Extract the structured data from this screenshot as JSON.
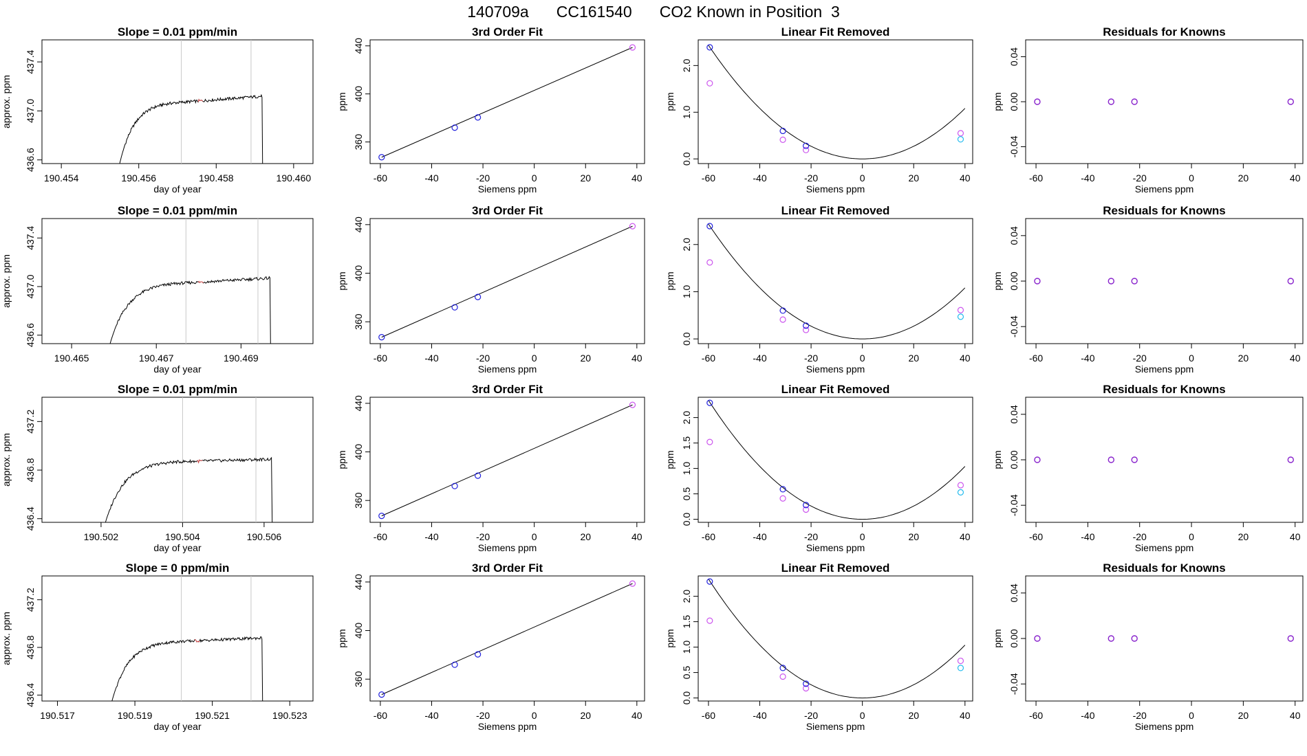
{
  "page": {
    "title_parts": [
      "140709a",
      "CC161540",
      "CO2 Known in Position  3"
    ]
  },
  "colors": {
    "axis": "#000000",
    "trace": "#000000",
    "marker_vline": "#c8c8c8",
    "highlight_trace": "#e05050",
    "point_blue": "#2020dd",
    "point_magenta": "#cc55ee",
    "point_cyan": "#22bbee",
    "point_purple": "#8822cc"
  },
  "chart_data": [
    {
      "type": "line",
      "panel": "time-series",
      "row": 0,
      "title": "Slope =  0.01  ppm/min",
      "xlabel": "day of year",
      "ylabel": "approx. ppm",
      "xlim": [
        190.4535,
        190.4605
      ],
      "ylim": [
        436.57,
        437.58
      ],
      "xticks": [
        190.454,
        190.456,
        190.458,
        190.46
      ],
      "xtick_labels": [
        "190.454",
        "190.456",
        "190.458",
        "190.460"
      ],
      "yticks": [
        436.6,
        437.0,
        437.4
      ],
      "ytick_labels": [
        "436.6",
        "437.0",
        "437.4"
      ],
      "vlines": [
        190.4571,
        190.4589
      ],
      "curve": {
        "x_start": 190.4555,
        "x_plateau": 190.4571,
        "x_end": 190.4592,
        "y_start": 436.56,
        "y_plateau": 437.07,
        "y_final": 437.12,
        "noise": 0.012
      }
    },
    {
      "type": "line",
      "panel": "time-series",
      "row": 1,
      "title": "Slope =  0.01  ppm/min",
      "xlabel": "day of year",
      "ylabel": "approx. ppm",
      "xlim": [
        190.4643,
        190.4707
      ],
      "ylim": [
        436.53,
        437.56
      ],
      "xticks": [
        190.465,
        190.467,
        190.469
      ],
      "xtick_labels": [
        "190.465",
        "190.467",
        "190.469"
      ],
      "yticks": [
        436.6,
        437.0,
        437.4
      ],
      "ytick_labels": [
        "436.6",
        "437.0",
        "437.4"
      ],
      "vlines": [
        190.4677,
        190.4694
      ],
      "curve": {
        "x_start": 190.4659,
        "x_plateau": 190.4677,
        "x_end": 190.4697,
        "y_start": 436.52,
        "y_plateau": 437.03,
        "y_final": 437.07,
        "noise": 0.012
      }
    },
    {
      "type": "line",
      "panel": "time-series",
      "row": 2,
      "title": "Slope =  0.01  ppm/min",
      "xlabel": "day of year",
      "ylabel": "approx. ppm",
      "xlim": [
        190.50105,
        190.5077
      ],
      "ylim": [
        436.37,
        437.4
      ],
      "xticks": [
        190.5025,
        190.5045,
        190.5065
      ],
      "xtick_labels": [
        "190.502",
        "190.504",
        "190.506"
      ],
      "yticks": [
        436.4,
        436.8,
        437.2
      ],
      "ytick_labels": [
        "436.4",
        "436.8",
        "437.2"
      ],
      "vlines": [
        190.5045,
        190.5063
      ],
      "curve": {
        "x_start": 190.5026,
        "x_plateau": 190.5045,
        "x_end": 190.5067,
        "y_start": 436.36,
        "y_plateau": 436.87,
        "y_final": 436.89,
        "noise": 0.012
      }
    },
    {
      "type": "line",
      "panel": "time-series",
      "row": 3,
      "title": "Slope =  0",
      "title_suffix": "  ppm/min",
      "xlabel": "day of year",
      "ylabel": "approx. ppm",
      "xlim": [
        190.5166,
        190.5236
      ],
      "ylim": [
        436.35,
        437.4
      ],
      "xticks": [
        190.517,
        190.519,
        190.521,
        190.523
      ],
      "xtick_labels": [
        "190.517",
        "190.519",
        "190.521",
        "190.523"
      ],
      "yticks": [
        436.4,
        436.8,
        437.2
      ],
      "ytick_labels": [
        "436.4",
        "436.8",
        "437.2"
      ],
      "vlines": [
        190.5202,
        190.522
      ],
      "curve": {
        "x_start": 190.5184,
        "x_plateau": 190.5202,
        "x_end": 190.5223,
        "y_start": 436.34,
        "y_plateau": 436.85,
        "y_final": 436.88,
        "noise": 0.012
      }
    },
    {
      "type": "scatter",
      "panel": "fit",
      "row": 0,
      "title": "3rd Order Fit",
      "xlabel": "Siemens ppm",
      "ylabel": "ppm",
      "xlim": [
        -64,
        43
      ],
      "ylim": [
        342,
        445
      ],
      "xticks": [
        -60,
        -40,
        -20,
        0,
        20,
        40
      ],
      "xtick_labels": [
        "-60",
        "-40",
        "-20",
        "0",
        "20",
        "40"
      ],
      "yticks": [
        360,
        400,
        440
      ],
      "ytick_labels": [
        "360",
        "400",
        "440"
      ],
      "points": [
        {
          "x": -59.5,
          "y": 347.3
        },
        {
          "x": -31.0,
          "y": 371.9
        },
        {
          "x": -22.0,
          "y": 380.4
        },
        {
          "x": 38.3,
          "y": 438.7
        }
      ],
      "fit_line": [
        [
          -59.5,
          347.3
        ],
        [
          38.3,
          438.7
        ]
      ]
    },
    {
      "type": "scatter",
      "panel": "fit",
      "row": 1,
      "title": "3rd Order Fit",
      "xlabel": "Siemens ppm",
      "ylabel": "ppm",
      "xlim": [
        -64,
        43
      ],
      "ylim": [
        342,
        445
      ],
      "xticks": [
        -60,
        -40,
        -20,
        0,
        20,
        40
      ],
      "xtick_labels": [
        "-60",
        "-40",
        "-20",
        "0",
        "20",
        "40"
      ],
      "yticks": [
        360,
        400,
        440
      ],
      "ytick_labels": [
        "360",
        "400",
        "440"
      ],
      "points": [
        {
          "x": -59.5,
          "y": 347.3
        },
        {
          "x": -31.0,
          "y": 371.9
        },
        {
          "x": -22.0,
          "y": 380.4
        },
        {
          "x": 38.3,
          "y": 438.7
        }
      ],
      "fit_line": [
        [
          -59.5,
          347.3
        ],
        [
          38.3,
          438.7
        ]
      ]
    },
    {
      "type": "scatter",
      "panel": "fit",
      "row": 2,
      "title": "3rd Order Fit",
      "xlabel": "Siemens ppm",
      "ylabel": "ppm",
      "xlim": [
        -64,
        43
      ],
      "ylim": [
        342,
        445
      ],
      "xticks": [
        -60,
        -40,
        -20,
        0,
        20,
        40
      ],
      "xtick_labels": [
        "-60",
        "-40",
        "-20",
        "0",
        "20",
        "40"
      ],
      "yticks": [
        360,
        400,
        440
      ],
      "ytick_labels": [
        "360",
        "400",
        "440"
      ],
      "points": [
        {
          "x": -59.5,
          "y": 347.3
        },
        {
          "x": -31.0,
          "y": 371.9
        },
        {
          "x": -22.0,
          "y": 380.4
        },
        {
          "x": 38.3,
          "y": 438.7
        }
      ],
      "fit_line": [
        [
          -59.5,
          347.3
        ],
        [
          38.3,
          438.7
        ]
      ]
    },
    {
      "type": "scatter",
      "panel": "fit",
      "row": 3,
      "title": "3rd Order Fit",
      "xlabel": "Siemens ppm",
      "ylabel": "ppm",
      "xlim": [
        -64,
        43
      ],
      "ylim": [
        342,
        445
      ],
      "xticks": [
        -60,
        -40,
        -20,
        0,
        20,
        40
      ],
      "xtick_labels": [
        "-60",
        "-40",
        "-20",
        "0",
        "20",
        "40"
      ],
      "yticks": [
        360,
        400,
        440
      ],
      "ytick_labels": [
        "360",
        "400",
        "440"
      ],
      "points": [
        {
          "x": -59.5,
          "y": 347.3
        },
        {
          "x": -31.0,
          "y": 371.9
        },
        {
          "x": -22.0,
          "y": 380.4
        },
        {
          "x": 38.3,
          "y": 438.7
        }
      ],
      "fit_line": [
        [
          -59.5,
          347.3
        ],
        [
          38.3,
          438.7
        ]
      ]
    },
    {
      "type": "scatter",
      "panel": "linear-removed",
      "row": 0,
      "title": "Linear Fit Removed",
      "xlabel": "Siemens ppm",
      "ylabel": "ppm",
      "xlim": [
        -64,
        43
      ],
      "ylim": [
        -0.1,
        2.55
      ],
      "xticks": [
        -60,
        -40,
        -20,
        0,
        20,
        40
      ],
      "xtick_labels": [
        "-60",
        "-40",
        "-20",
        "0",
        "20",
        "40"
      ],
      "yticks": [
        0.0,
        1.0,
        2.0
      ],
      "ytick_labels": [
        "0.0",
        "1.0",
        "2.0"
      ],
      "curve_a": 0.000676,
      "curve_x_range": [
        -60,
        40
      ],
      "points_blue": [
        {
          "x": -59.5,
          "y": 2.39
        },
        {
          "x": -31.0,
          "y": 0.6
        },
        {
          "x": -22.0,
          "y": 0.28
        }
      ],
      "points_magenta": [
        {
          "x": -59.5,
          "y": 1.62
        },
        {
          "x": -31.0,
          "y": 0.41
        },
        {
          "x": -22.0,
          "y": 0.19
        },
        {
          "x": 38.3,
          "y": 0.55
        }
      ],
      "points_cyan": [
        {
          "x": 38.3,
          "y": 0.42
        }
      ]
    },
    {
      "type": "scatter",
      "panel": "linear-removed",
      "row": 1,
      "title": "Linear Fit Removed",
      "xlabel": "Siemens ppm",
      "ylabel": "ppm",
      "xlim": [
        -64,
        43
      ],
      "ylim": [
        -0.1,
        2.55
      ],
      "xticks": [
        -60,
        -40,
        -20,
        0,
        20,
        40
      ],
      "xtick_labels": [
        "-60",
        "-40",
        "-20",
        "0",
        "20",
        "40"
      ],
      "yticks": [
        0.0,
        1.0,
        2.0
      ],
      "ytick_labels": [
        "0.0",
        "1.0",
        "2.0"
      ],
      "curve_a": 0.000676,
      "curve_x_range": [
        -60,
        40
      ],
      "points_blue": [
        {
          "x": -59.5,
          "y": 2.39
        },
        {
          "x": -31.0,
          "y": 0.6
        },
        {
          "x": -22.0,
          "y": 0.28
        }
      ],
      "points_magenta": [
        {
          "x": -59.5,
          "y": 1.62
        },
        {
          "x": -31.0,
          "y": 0.41
        },
        {
          "x": -22.0,
          "y": 0.19
        },
        {
          "x": 38.3,
          "y": 0.61
        }
      ],
      "points_cyan": [
        {
          "x": 38.3,
          "y": 0.47
        }
      ]
    },
    {
      "type": "scatter",
      "panel": "linear-removed",
      "row": 2,
      "title": "Linear Fit Removed",
      "xlabel": "Siemens ppm",
      "ylabel": "ppm",
      "xlim": [
        -64,
        43
      ],
      "ylim": [
        -0.06,
        2.4
      ],
      "xticks": [
        -60,
        -40,
        -20,
        0,
        20,
        40
      ],
      "xtick_labels": [
        "-60",
        "-40",
        "-20",
        "0",
        "20",
        "40"
      ],
      "yticks": [
        0.0,
        0.5,
        1.0,
        1.5,
        2.0
      ],
      "ytick_labels": [
        "0.0",
        "0.5",
        "1.0",
        "1.5",
        "2.0"
      ],
      "curve_a": 0.00065,
      "curve_x_range": [
        -60,
        40
      ],
      "points_blue": [
        {
          "x": -59.5,
          "y": 2.29
        },
        {
          "x": -31.0,
          "y": 0.59
        },
        {
          "x": -22.0,
          "y": 0.28
        }
      ],
      "points_magenta": [
        {
          "x": -59.5,
          "y": 1.52
        },
        {
          "x": -31.0,
          "y": 0.41
        },
        {
          "x": -22.0,
          "y": 0.19
        },
        {
          "x": 38.3,
          "y": 0.67
        }
      ],
      "points_cyan": [
        {
          "x": 38.3,
          "y": 0.53
        }
      ]
    },
    {
      "type": "scatter",
      "panel": "linear-removed",
      "row": 3,
      "title": "Linear Fit Removed",
      "xlabel": "Siemens ppm",
      "ylabel": "ppm",
      "xlim": [
        -64,
        43
      ],
      "ylim": [
        -0.06,
        2.4
      ],
      "xticks": [
        -60,
        -40,
        -20,
        0,
        20,
        40
      ],
      "xtick_labels": [
        "-60",
        "-40",
        "-20",
        "0",
        "20",
        "40"
      ],
      "yticks": [
        0.0,
        0.5,
        1.0,
        1.5,
        2.0
      ],
      "ytick_labels": [
        "0.0",
        "0.5",
        "1.0",
        "1.5",
        "2.0"
      ],
      "curve_a": 0.00065,
      "curve_x_range": [
        -60,
        40
      ],
      "points_blue": [
        {
          "x": -59.5,
          "y": 2.29
        },
        {
          "x": -31.0,
          "y": 0.59
        },
        {
          "x": -22.0,
          "y": 0.28
        }
      ],
      "points_magenta": [
        {
          "x": -59.5,
          "y": 1.52
        },
        {
          "x": -31.0,
          "y": 0.42
        },
        {
          "x": -22.0,
          "y": 0.19
        },
        {
          "x": 38.3,
          "y": 0.73
        }
      ],
      "points_cyan": [
        {
          "x": 38.3,
          "y": 0.59
        }
      ]
    },
    {
      "type": "scatter",
      "panel": "residuals",
      "row": 0,
      "title": "Residuals for Knowns",
      "xlabel": "Siemens ppm",
      "ylabel": "ppm",
      "xlim": [
        -64,
        43
      ],
      "ylim": [
        -0.055,
        0.055
      ],
      "xticks": [
        -60,
        -40,
        -20,
        0,
        20,
        40
      ],
      "xtick_labels": [
        "-60",
        "-40",
        "-20",
        "0",
        "20",
        "40"
      ],
      "yticks": [
        -0.04,
        0.0,
        0.04
      ],
      "ytick_labels": [
        "-0.04",
        "0.00",
        "0.04"
      ],
      "points": [
        {
          "x": -59.5,
          "y": 0
        },
        {
          "x": -31.0,
          "y": 0
        },
        {
          "x": -22.0,
          "y": 0
        },
        {
          "x": 38.3,
          "y": 0
        }
      ]
    },
    {
      "type": "scatter",
      "panel": "residuals",
      "row": 1,
      "title": "Residuals for Knowns",
      "xlabel": "Siemens ppm",
      "ylabel": "ppm",
      "xlim": [
        -64,
        43
      ],
      "ylim": [
        -0.055,
        0.055
      ],
      "xticks": [
        -60,
        -40,
        -20,
        0,
        20,
        40
      ],
      "xtick_labels": [
        "-60",
        "-40",
        "-20",
        "0",
        "20",
        "40"
      ],
      "yticks": [
        -0.04,
        0.0,
        0.04
      ],
      "ytick_labels": [
        "-0.04",
        "0.00",
        "0.04"
      ],
      "points": [
        {
          "x": -59.5,
          "y": 0
        },
        {
          "x": -31.0,
          "y": 0
        },
        {
          "x": -22.0,
          "y": 0
        },
        {
          "x": 38.3,
          "y": 0
        }
      ]
    },
    {
      "type": "scatter",
      "panel": "residuals",
      "row": 2,
      "title": "Residuals for Knowns",
      "xlabel": "Siemens ppm",
      "ylabel": "ppm",
      "xlim": [
        -64,
        43
      ],
      "ylim": [
        -0.055,
        0.055
      ],
      "xticks": [
        -60,
        -40,
        -20,
        0,
        20,
        40
      ],
      "xtick_labels": [
        "-60",
        "-40",
        "-20",
        "0",
        "20",
        "40"
      ],
      "yticks": [
        -0.04,
        0.0,
        0.04
      ],
      "ytick_labels": [
        "-0.04",
        "0.00",
        "0.04"
      ],
      "points": [
        {
          "x": -59.5,
          "y": 0
        },
        {
          "x": -31.0,
          "y": 0
        },
        {
          "x": -22.0,
          "y": 0
        },
        {
          "x": 38.3,
          "y": 0
        }
      ]
    },
    {
      "type": "scatter",
      "panel": "residuals",
      "row": 3,
      "title": "Residuals for Knowns",
      "xlabel": "Siemens ppm",
      "ylabel": "ppm",
      "xlim": [
        -64,
        43
      ],
      "ylim": [
        -0.055,
        0.055
      ],
      "xticks": [
        -60,
        -40,
        -20,
        0,
        20,
        40
      ],
      "xtick_labels": [
        "-60",
        "-40",
        "-20",
        "0",
        "20",
        "40"
      ],
      "yticks": [
        -0.04,
        0.0,
        0.04
      ],
      "ytick_labels": [
        "-0.04",
        "0.00",
        "0.04"
      ],
      "points": [
        {
          "x": -59.5,
          "y": 0
        },
        {
          "x": -31.0,
          "y": 0
        },
        {
          "x": -22.0,
          "y": 0
        },
        {
          "x": 38.3,
          "y": 0
        }
      ]
    }
  ]
}
